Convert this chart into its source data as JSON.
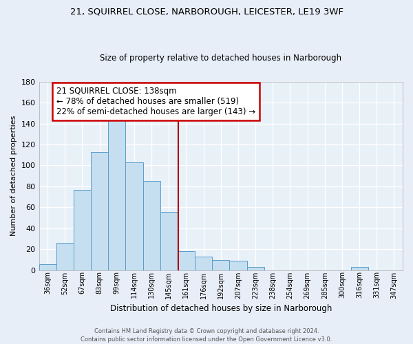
{
  "title1": "21, SQUIRREL CLOSE, NARBOROUGH, LEICESTER, LE19 3WF",
  "title2": "Size of property relative to detached houses in Narborough",
  "xlabel": "Distribution of detached houses by size in Narborough",
  "ylabel": "Number of detached properties",
  "bar_labels": [
    "36sqm",
    "52sqm",
    "67sqm",
    "83sqm",
    "99sqm",
    "114sqm",
    "130sqm",
    "145sqm",
    "161sqm",
    "176sqm",
    "192sqm",
    "207sqm",
    "223sqm",
    "238sqm",
    "254sqm",
    "269sqm",
    "285sqm",
    "300sqm",
    "316sqm",
    "331sqm",
    "347sqm"
  ],
  "bar_values": [
    6,
    26,
    77,
    113,
    144,
    103,
    85,
    56,
    18,
    13,
    10,
    9,
    3,
    0,
    0,
    0,
    0,
    0,
    3,
    0,
    0
  ],
  "bar_color": "#c5dff0",
  "bar_edge_color": "#5b9dc9",
  "ylim": [
    0,
    180
  ],
  "yticks": [
    0,
    20,
    40,
    60,
    80,
    100,
    120,
    140,
    160,
    180
  ],
  "annotation_title": "21 SQUIRREL CLOSE: 138sqm",
  "annotation_line1": "← 78% of detached houses are smaller (519)",
  "annotation_line2": "22% of semi-detached houses are larger (143) →",
  "vline_x": 7.53,
  "footer1": "Contains HM Land Registry data © Crown copyright and database right 2024.",
  "footer2": "Contains public sector information licensed under the Open Government Licence v3.0.",
  "background_color": "#e8eef8",
  "plot_bg_color": "#e8f0f8",
  "grid_color": "#ffffff",
  "ann_box_facecolor": "#ffffff",
  "ann_box_edgecolor": "#cc0000",
  "vline_color": "#aa0000"
}
